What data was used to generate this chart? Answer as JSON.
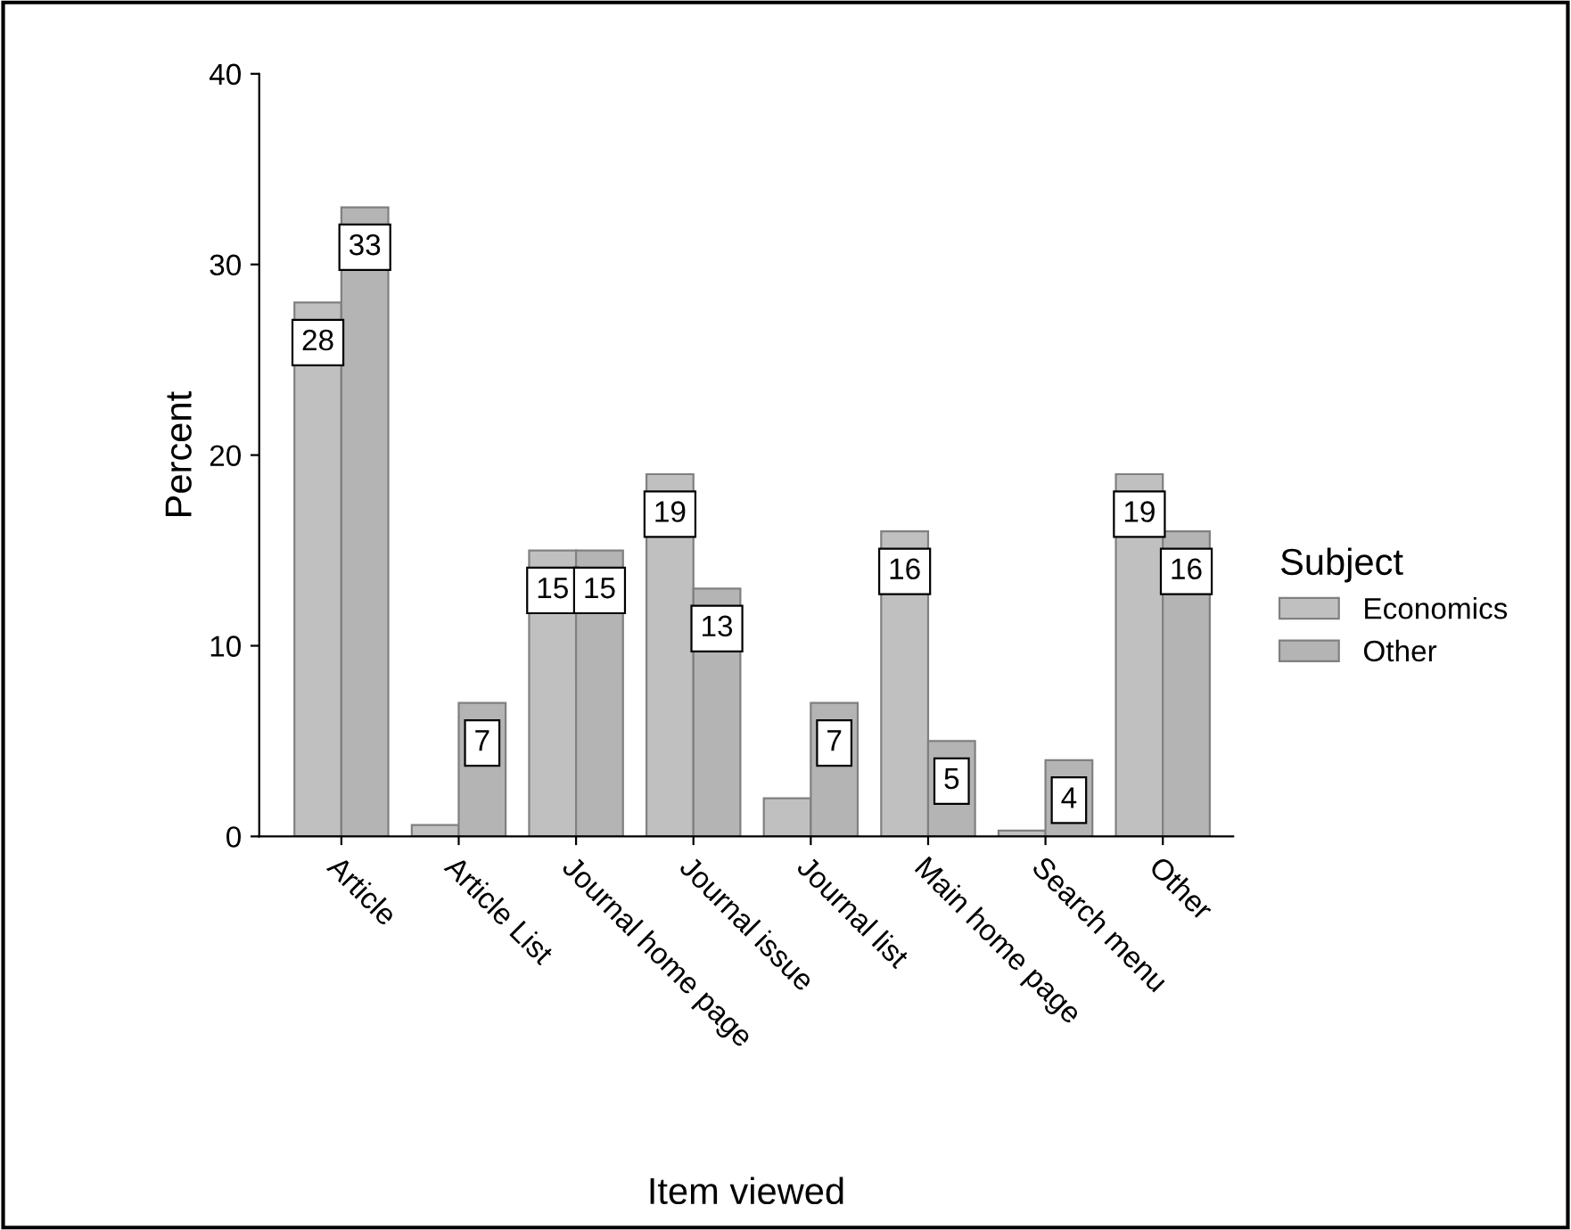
{
  "chart_data": {
    "type": "bar",
    "xlabel": "Item viewed",
    "ylabel": "Percent",
    "legend_title": "Subject",
    "legend": "right",
    "categories": [
      "Article",
      "Article List",
      "Journal home page",
      "Journal issue",
      "Journal list",
      "Main home page",
      "Search menu",
      "Other"
    ],
    "series": [
      {
        "name": "Economics",
        "color": "#c0c0c0",
        "values": [
          28,
          0.6,
          15,
          19,
          2,
          16,
          0.3,
          19
        ],
        "value_labels": [
          "28",
          null,
          "15",
          "19",
          null,
          "16",
          null,
          "19"
        ]
      },
      {
        "name": "Other",
        "color": "#b4b4b4",
        "values": [
          33,
          7,
          15,
          13,
          7,
          5,
          4,
          16
        ],
        "value_labels": [
          "33",
          "7",
          "15",
          "13",
          "7",
          "5",
          "4",
          "16"
        ]
      }
    ],
    "ylim": [
      0,
      40
    ],
    "yticks": [
      0,
      10,
      20,
      30,
      40
    ],
    "grid": false
  }
}
